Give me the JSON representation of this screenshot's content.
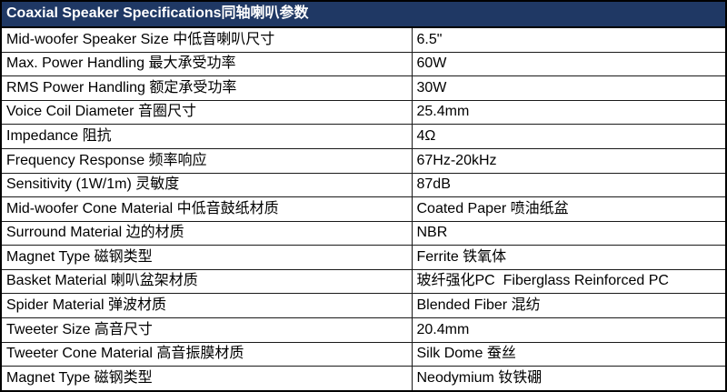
{
  "table": {
    "title": "Coaxial Speaker Specifications同轴喇叭参数",
    "colors": {
      "header_bg": "#1F3864",
      "header_text": "#FFFFFF",
      "border": "#000000",
      "row_bg": "#FFFFFF",
      "row_text": "#000000"
    },
    "rows": [
      {
        "label": "Mid-woofer Speaker Size 中低音喇叭尺寸",
        "value": "6.5\""
      },
      {
        "label": "Max. Power Handling 最大承受功率",
        "value": "60W"
      },
      {
        "label": "RMS Power Handling 额定承受功率",
        "value": "30W"
      },
      {
        "label": "Voice Coil Diameter 音圈尺寸",
        "value": "25.4mm"
      },
      {
        "label": "Impedance 阻抗",
        "value": "4Ω"
      },
      {
        "label": "Frequency Response 频率响应",
        "value": "67Hz-20kHz"
      },
      {
        "label": "Sensitivity (1W/1m) 灵敏度",
        "value": "87dB"
      },
      {
        "label": "Mid-woofer Cone Material 中低音鼓纸材质",
        "value": "Coated Paper 喷油纸盆"
      },
      {
        "label": "Surround Material 边的材质",
        "value": "NBR"
      },
      {
        "label": "Magnet Type 磁钢类型",
        "value": "Ferrite 铁氧体"
      },
      {
        "label": "Basket Material 喇叭盆架材质",
        "value": "玻纤强化PC  Fiberglass Reinforced PC"
      },
      {
        "label": "Spider Material 弹波材质",
        "value": "Blended Fiber 混纺"
      },
      {
        "label": "Tweeter Size 高音尺寸",
        "value": "20.4mm"
      },
      {
        "label": "Tweeter Cone Material 高音振膜材质",
        "value": "Silk Dome 蚕丝"
      },
      {
        "label": "Magnet Type 磁钢类型",
        "value": "Neodymium 钕铁硼"
      }
    ]
  }
}
